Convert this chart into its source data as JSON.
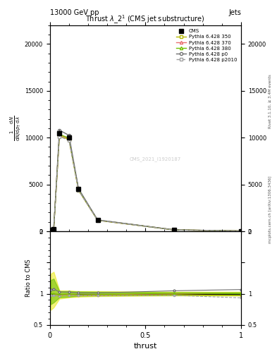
{
  "title": "13000 GeV pp",
  "label_right": "Jets",
  "plot_title": "Thrust $\\lambda$_2$^1$ (CMS jet substructure)",
  "watermark": "CMS_2021_I1920187",
  "rivet_text": "Rivet 3.1.10, ≥ 3.4M events",
  "arxiv_text": "mcplots.cern.ch [arXiv:1306.3436]",
  "xlabel": "thrust",
  "ylim_main": [
    0,
    22000
  ],
  "ylim_ratio": [
    0.5,
    2.0
  ],
  "yticks_main": [
    0,
    5000,
    10000,
    15000,
    20000
  ],
  "xlim": [
    0,
    1.0
  ],
  "xticks": [
    0,
    0.5,
    1.0
  ],
  "x_pts": [
    0.005,
    0.02,
    0.05,
    0.1,
    0.15,
    0.25,
    0.65,
    1.0
  ],
  "cms_vals": [
    150,
    200,
    10500,
    10000,
    4500,
    1200,
    150,
    30
  ],
  "p350_vals": [
    150,
    200,
    10200,
    9800,
    4380,
    1170,
    148,
    29
  ],
  "p370_vals": [
    150,
    200,
    10300,
    9900,
    4410,
    1180,
    150,
    30
  ],
  "p380_vals": [
    150,
    200,
    10350,
    9950,
    4430,
    1185,
    151,
    30
  ],
  "p0_vals": [
    160,
    215,
    10800,
    10250,
    4560,
    1215,
    157,
    32
  ],
  "p2010_vals": [
    145,
    195,
    10120,
    9720,
    4360,
    1160,
    146,
    28
  ],
  "color_350": "#b5b800",
  "color_370": "#e87070",
  "color_380": "#70c000",
  "color_p0": "#707070",
  "color_p2010": "#a0a0a0",
  "band_350_lo": [
    0.74,
    0.78,
    0.92,
    0.94,
    0.95,
    0.96,
    0.97,
    0.97
  ],
  "band_350_hi": [
    1.32,
    1.35,
    1.05,
    1.05,
    1.04,
    1.04,
    1.03,
    1.03
  ],
  "band_380_lo": [
    0.83,
    0.86,
    0.94,
    0.95,
    0.965,
    0.97,
    0.978,
    0.978
  ],
  "band_380_hi": [
    1.22,
    1.24,
    1.04,
    1.04,
    1.035,
    1.03,
    1.022,
    1.022
  ]
}
